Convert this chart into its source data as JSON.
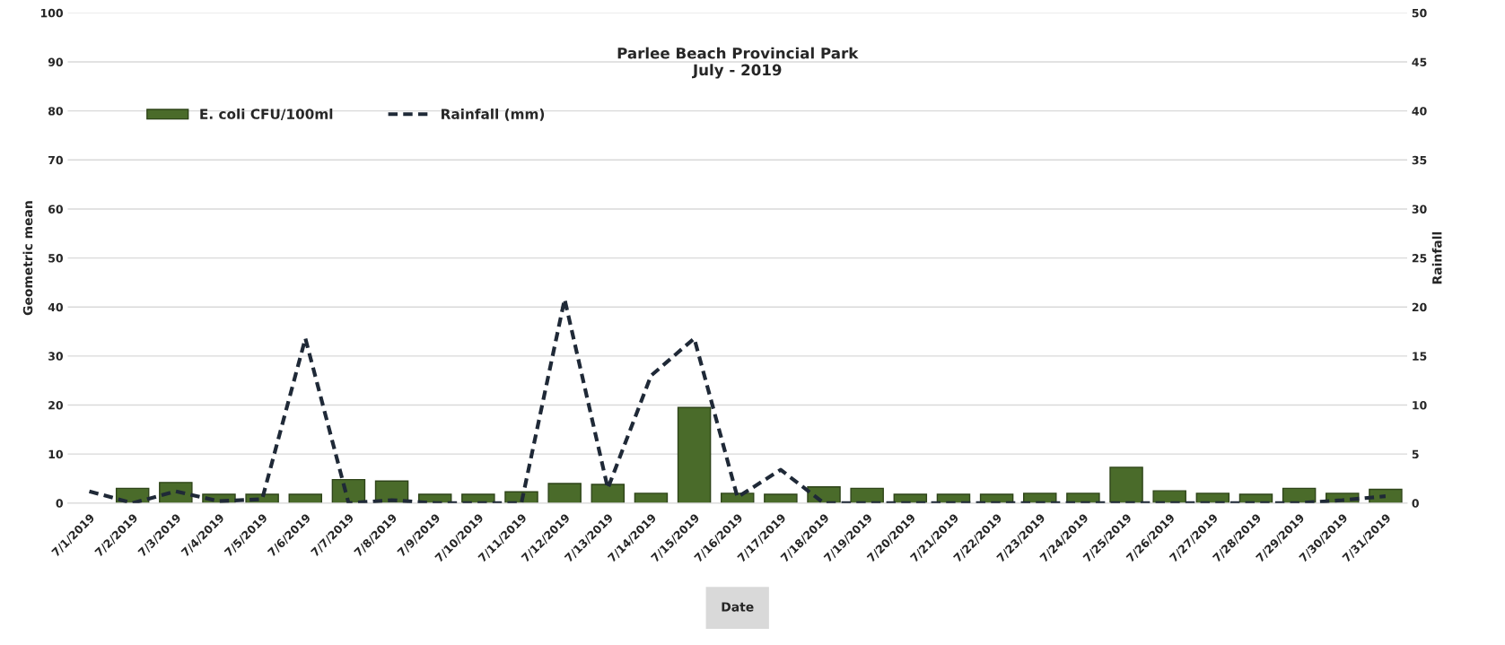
{
  "chart_data": {
    "type": "bar",
    "title": "Parlee Beach Provincial Park\nJuly - 2019",
    "xlabel": "Date",
    "ylabel": "Geometric mean",
    "y2label": "Rainfall",
    "categories": [
      "7/1/2019",
      "7/2/2019",
      "7/3/2019",
      "7/4/2019",
      "7/5/2019",
      "7/6/2019",
      "7/7/2019",
      "7/8/2019",
      "7/9/2019",
      "7/10/2019",
      "7/11/2019",
      "7/12/2019",
      "7/13/2019",
      "7/14/2019",
      "7/15/2019",
      "7/16/2019",
      "7/17/2019",
      "7/18/2019",
      "7/19/2019",
      "7/20/2019",
      "7/21/2019",
      "7/22/2019",
      "7/23/2019",
      "7/24/2019",
      "7/25/2019",
      "7/26/2019",
      "7/27/2019",
      "7/28/2019",
      "7/29/2019",
      "7/30/2019",
      "7/31/2019"
    ],
    "series": [
      {
        "name": "E. coli CFU/100ml",
        "color": "#4a6b2a",
        "values": [
          null,
          3,
          4.2,
          1.8,
          1.8,
          1.8,
          4.8,
          4.5,
          1.8,
          1.8,
          2.3,
          4,
          3.8,
          2,
          19.5,
          2,
          1.8,
          3.3,
          3,
          1.8,
          1.8,
          1.8,
          2,
          2,
          7.3,
          2.5,
          2,
          1.8,
          3,
          2,
          2.8
        ]
      },
      {
        "name": "Rainfall (mm)",
        "type": "line",
        "axis": "y2",
        "color": "#1f2937",
        "line_style": "dashed",
        "values": [
          1.2,
          0,
          1.2,
          0.2,
          0.4,
          16.8,
          0,
          0.3,
          0,
          0,
          0,
          20.8,
          1.5,
          13,
          16.8,
          0.6,
          3.4,
          0,
          0,
          0,
          0,
          0,
          0,
          0,
          0,
          0,
          0,
          0,
          0,
          0.3,
          0.7
        ]
      }
    ],
    "ylim": [
      0,
      100
    ],
    "yticks": [
      0,
      10,
      20,
      30,
      40,
      50,
      60,
      70,
      80,
      90,
      100
    ],
    "y2lim": [
      0,
      50
    ],
    "y2ticks": [
      0,
      5,
      10,
      15,
      20,
      25,
      30,
      35,
      40,
      45,
      50
    ],
    "grid": "y",
    "legend": "top left"
  }
}
